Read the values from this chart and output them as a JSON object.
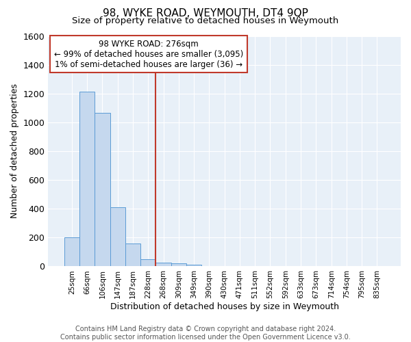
{
  "title": "98, WYKE ROAD, WEYMOUTH, DT4 9QP",
  "subtitle": "Size of property relative to detached houses in Weymouth",
  "xlabel": "Distribution of detached houses by size in Weymouth",
  "ylabel": "Number of detached properties",
  "footer_line1": "Contains HM Land Registry data © Crown copyright and database right 2024.",
  "footer_line2": "Contains public sector information licensed under the Open Government Licence v3.0.",
  "bin_labels": [
    "25sqm",
    "66sqm",
    "106sqm",
    "147sqm",
    "187sqm",
    "228sqm",
    "268sqm",
    "309sqm",
    "349sqm",
    "390sqm",
    "430sqm",
    "471sqm",
    "511sqm",
    "552sqm",
    "592sqm",
    "633sqm",
    "673sqm",
    "714sqm",
    "754sqm",
    "795sqm",
    "835sqm"
  ],
  "bar_values": [
    200,
    1215,
    1065,
    410,
    160,
    50,
    25,
    20,
    12,
    0,
    0,
    0,
    0,
    0,
    0,
    0,
    0,
    0,
    0,
    0,
    0
  ],
  "bar_color": "#c5d8ee",
  "bar_edge_color": "#5b9bd5",
  "vline_x_index": 6,
  "vline_color": "#c0392b",
  "annotation_line1": "98 WYKE ROAD: 276sqm",
  "annotation_line2": "← 99% of detached houses are smaller (3,095)",
  "annotation_line3": "1% of semi-detached houses are larger (36) →",
  "annotation_box_color": "#ffffff",
  "annotation_box_edge_color": "#c0392b",
  "ylim": [
    0,
    1600
  ],
  "yticks": [
    0,
    200,
    400,
    600,
    800,
    1000,
    1200,
    1400,
    1600
  ],
  "bg_color": "#ffffff",
  "plot_bg_color": "#e8f0f8",
  "grid_color": "#ffffff",
  "title_fontsize": 11,
  "subtitle_fontsize": 9.5,
  "ylabel_fontsize": 9,
  "xlabel_fontsize": 9,
  "footer_fontsize": 7
}
